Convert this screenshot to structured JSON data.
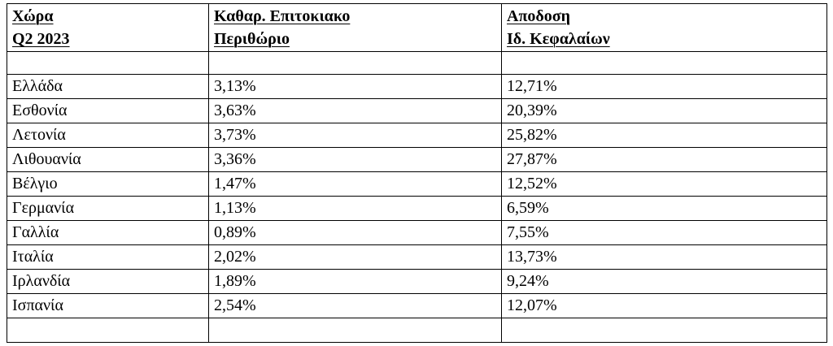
{
  "table": {
    "header": [
      [
        "Χώρα",
        "Q2 2023"
      ],
      [
        "Καθαρ. Επιτοκιακο",
        "Περιθώριο"
      ],
      [
        "Αποδοση",
        "Ιδ. Κεφαλαίων"
      ]
    ],
    "rows": [
      [
        "Ελλάδα",
        "3,13%",
        "12,71%"
      ],
      [
        "Εσθονία",
        "3,63%",
        "20,39%"
      ],
      [
        "Λετονία",
        "3,73%",
        "25,82%"
      ],
      [
        "Λιθουανία",
        "3,36%",
        "27,87%"
      ],
      [
        "Βέλγιο",
        "1,47%",
        "12,52%"
      ],
      [
        "Γερμανία",
        "1,13%",
        "6,59%"
      ],
      [
        "Γαλλία",
        "0,89%",
        "7,55%"
      ],
      [
        "Ιταλία",
        "2,02%",
        "13,73%"
      ],
      [
        "Ιρλανδία",
        "1,89%",
        "9,24%"
      ],
      [
        "Ισπανία",
        "2,54%",
        "12,07%"
      ]
    ]
  }
}
